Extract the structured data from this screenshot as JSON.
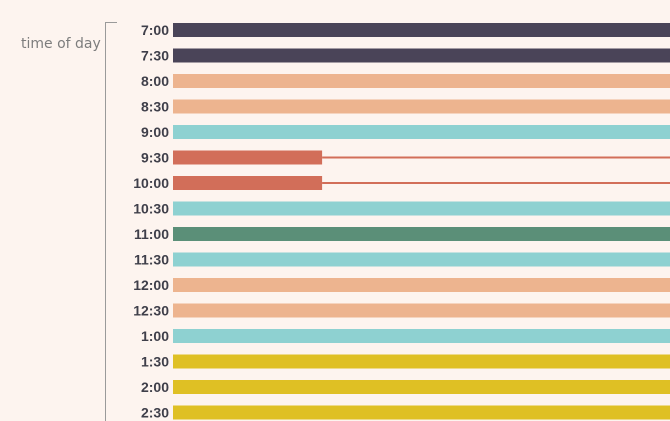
{
  "chart_data": {
    "type": "bar",
    "orientation": "horizontal",
    "ylabel": "time of day",
    "categories": [
      "7:00",
      "7:30",
      "8:00",
      "8:30",
      "9:00",
      "9:30",
      "10:00",
      "10:30",
      "11:00",
      "11:30",
      "12:00",
      "12:30",
      "1:00",
      "1:30",
      "2:00",
      "2:30"
    ],
    "values": [
      1,
      1,
      1,
      1,
      1,
      0.3,
      0.3,
      1,
      1,
      1,
      1,
      1,
      1,
      1,
      1,
      1
    ],
    "colors": [
      "#4a4458",
      "#4a4458",
      "#edb48f",
      "#edb48f",
      "#8ed1d1",
      "#d26e59",
      "#d26e59",
      "#8ed1d1",
      "#5b8f78",
      "#8ed1d1",
      "#edb48f",
      "#edb48f",
      "#8ed1d1",
      "#dfc024",
      "#dfc024",
      "#dfc024"
    ],
    "xlim": [
      0,
      1
    ],
    "grid": false,
    "legend": "none"
  }
}
